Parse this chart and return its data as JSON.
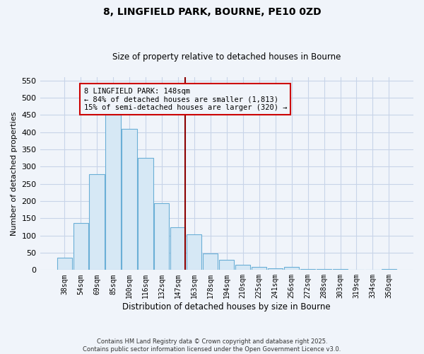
{
  "title": "8, LINGFIELD PARK, BOURNE, PE10 0ZD",
  "subtitle": "Size of property relative to detached houses in Bourne",
  "xlabel": "Distribution of detached houses by size in Bourne",
  "ylabel": "Number of detached properties",
  "categories": [
    "38sqm",
    "54sqm",
    "69sqm",
    "85sqm",
    "100sqm",
    "116sqm",
    "132sqm",
    "147sqm",
    "163sqm",
    "178sqm",
    "194sqm",
    "210sqm",
    "225sqm",
    "241sqm",
    "256sqm",
    "272sqm",
    "288sqm",
    "303sqm",
    "319sqm",
    "334sqm",
    "350sqm"
  ],
  "values": [
    35,
    137,
    278,
    450,
    410,
    325,
    193,
    125,
    103,
    47,
    30,
    15,
    8,
    5,
    8,
    3,
    2,
    2,
    1,
    1,
    2
  ],
  "bar_color": "#d6e8f5",
  "bar_edge_color": "#6aafd6",
  "highlight_bar_index": 7,
  "highlight_line_color": "#8b0000",
  "highlight_box_text_line1": "8 LINGFIELD PARK: 148sqm",
  "highlight_box_text_line2": "← 84% of detached houses are smaller (1,813)",
  "highlight_box_text_line3": "15% of semi-detached houses are larger (320) →",
  "box_edge_color": "#cc0000",
  "ylim": [
    0,
    560
  ],
  "yticks": [
    0,
    50,
    100,
    150,
    200,
    250,
    300,
    350,
    400,
    450,
    500,
    550
  ],
  "footer_line1": "Contains HM Land Registry data © Crown copyright and database right 2025.",
  "footer_line2": "Contains public sector information licensed under the Open Government Licence v3.0.",
  "bg_color": "#f0f4fa",
  "grid_color": "#c8d4e8",
  "title_fontsize": 10,
  "subtitle_fontsize": 8.5
}
